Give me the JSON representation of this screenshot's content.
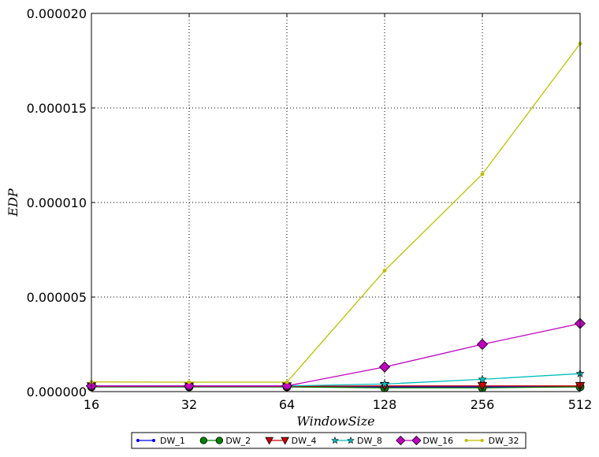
{
  "chart_data": {
    "type": "line",
    "xlabel": "WindowSize",
    "ylabel": "EDP",
    "x": [
      "16",
      "32",
      "64",
      "128",
      "256",
      "512"
    ],
    "y_ticks": [
      "0.000000",
      "0.000005",
      "0.000010",
      "0.000015",
      "0.000020"
    ],
    "ylim": [
      0,
      2e-05
    ],
    "grid": true,
    "legend_position": "bottom-center",
    "series": [
      {
        "name": "DW_1",
        "color": "#0000ff",
        "marker": "point",
        "values": [
          2.5e-07,
          2.5e-07,
          2.5e-07,
          2.5e-07,
          2.5e-07,
          2.5e-07
        ]
      },
      {
        "name": "DW_2",
        "color": "#008000",
        "marker": "circle",
        "values": [
          2.5e-07,
          2.5e-07,
          2.5e-07,
          2e-07,
          2e-07,
          2.5e-07
        ]
      },
      {
        "name": "DW_4",
        "color": "#cc0000",
        "marker": "triangle",
        "values": [
          2.8e-07,
          2.8e-07,
          2.8e-07,
          3e-07,
          3e-07,
          3e-07
        ]
      },
      {
        "name": "DW_8",
        "color": "#00bfbf",
        "marker": "star",
        "values": [
          3e-07,
          3e-07,
          3e-07,
          4e-07,
          6.5e-07,
          9.5e-07
        ]
      },
      {
        "name": "DW_16",
        "color": "#c000c0",
        "marker": "diamond",
        "values": [
          3e-07,
          3e-07,
          3e-07,
          1.3e-06,
          2.5e-06,
          3.6e-06
        ]
      },
      {
        "name": "DW_32",
        "color": "#bfbf00",
        "marker": "point",
        "values": [
          5.1e-07,
          5e-07,
          5e-07,
          6.4e-06,
          1.15e-05,
          1.84e-05
        ]
      }
    ]
  }
}
